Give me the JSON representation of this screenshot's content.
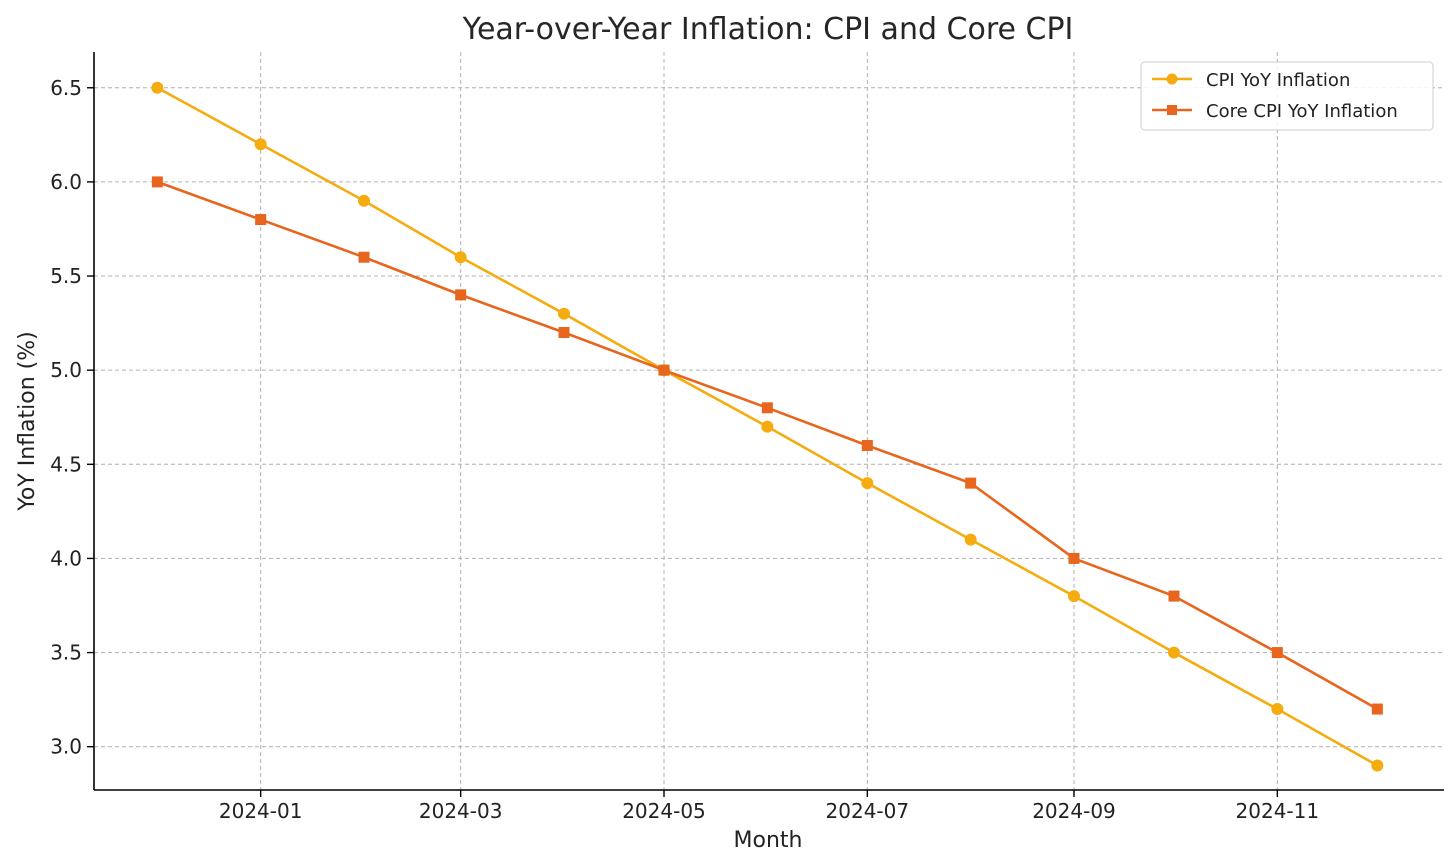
{
  "chart_data": {
    "type": "line",
    "title": "Year-over-Year Inflation: CPI and Core CPI",
    "xlabel": "Month",
    "ylabel": "YoY Inflation (%)",
    "x": [
      "2023-12-01",
      "2024-01-01",
      "2024-02-01",
      "2024-03-01",
      "2024-04-01",
      "2024-05-01",
      "2024-06-01",
      "2024-07-01",
      "2024-08-01",
      "2024-09-01",
      "2024-10-01",
      "2024-11-01",
      "2024-12-01"
    ],
    "x_ticks": [
      "2024-01",
      "2024-03",
      "2024-05",
      "2024-07",
      "2024-09",
      "2024-11"
    ],
    "y_ticks": [
      "3.0",
      "3.5",
      "4.0",
      "4.5",
      "5.0",
      "5.5",
      "6.0",
      "6.5"
    ],
    "ylim": [
      2.77,
      6.69
    ],
    "xlim": [
      "2023-11-12",
      "2024-12-21"
    ],
    "grid": true,
    "legend_position": "top-right",
    "series": [
      {
        "name": "CPI YoY Inflation",
        "color": "#f5ac10",
        "marker": "circle",
        "values": [
          6.5,
          6.2,
          5.9,
          5.6,
          5.3,
          5.0,
          4.7,
          4.4,
          4.1,
          3.8,
          3.5,
          3.2,
          2.9
        ]
      },
      {
        "name": "Core CPI YoY Inflation",
        "color": "#e8651e",
        "marker": "square",
        "values": [
          6.0,
          5.8,
          5.6,
          5.4,
          5.2,
          5.0,
          4.8,
          4.6,
          4.4,
          4.0,
          3.8,
          3.5,
          3.2
        ]
      }
    ]
  }
}
